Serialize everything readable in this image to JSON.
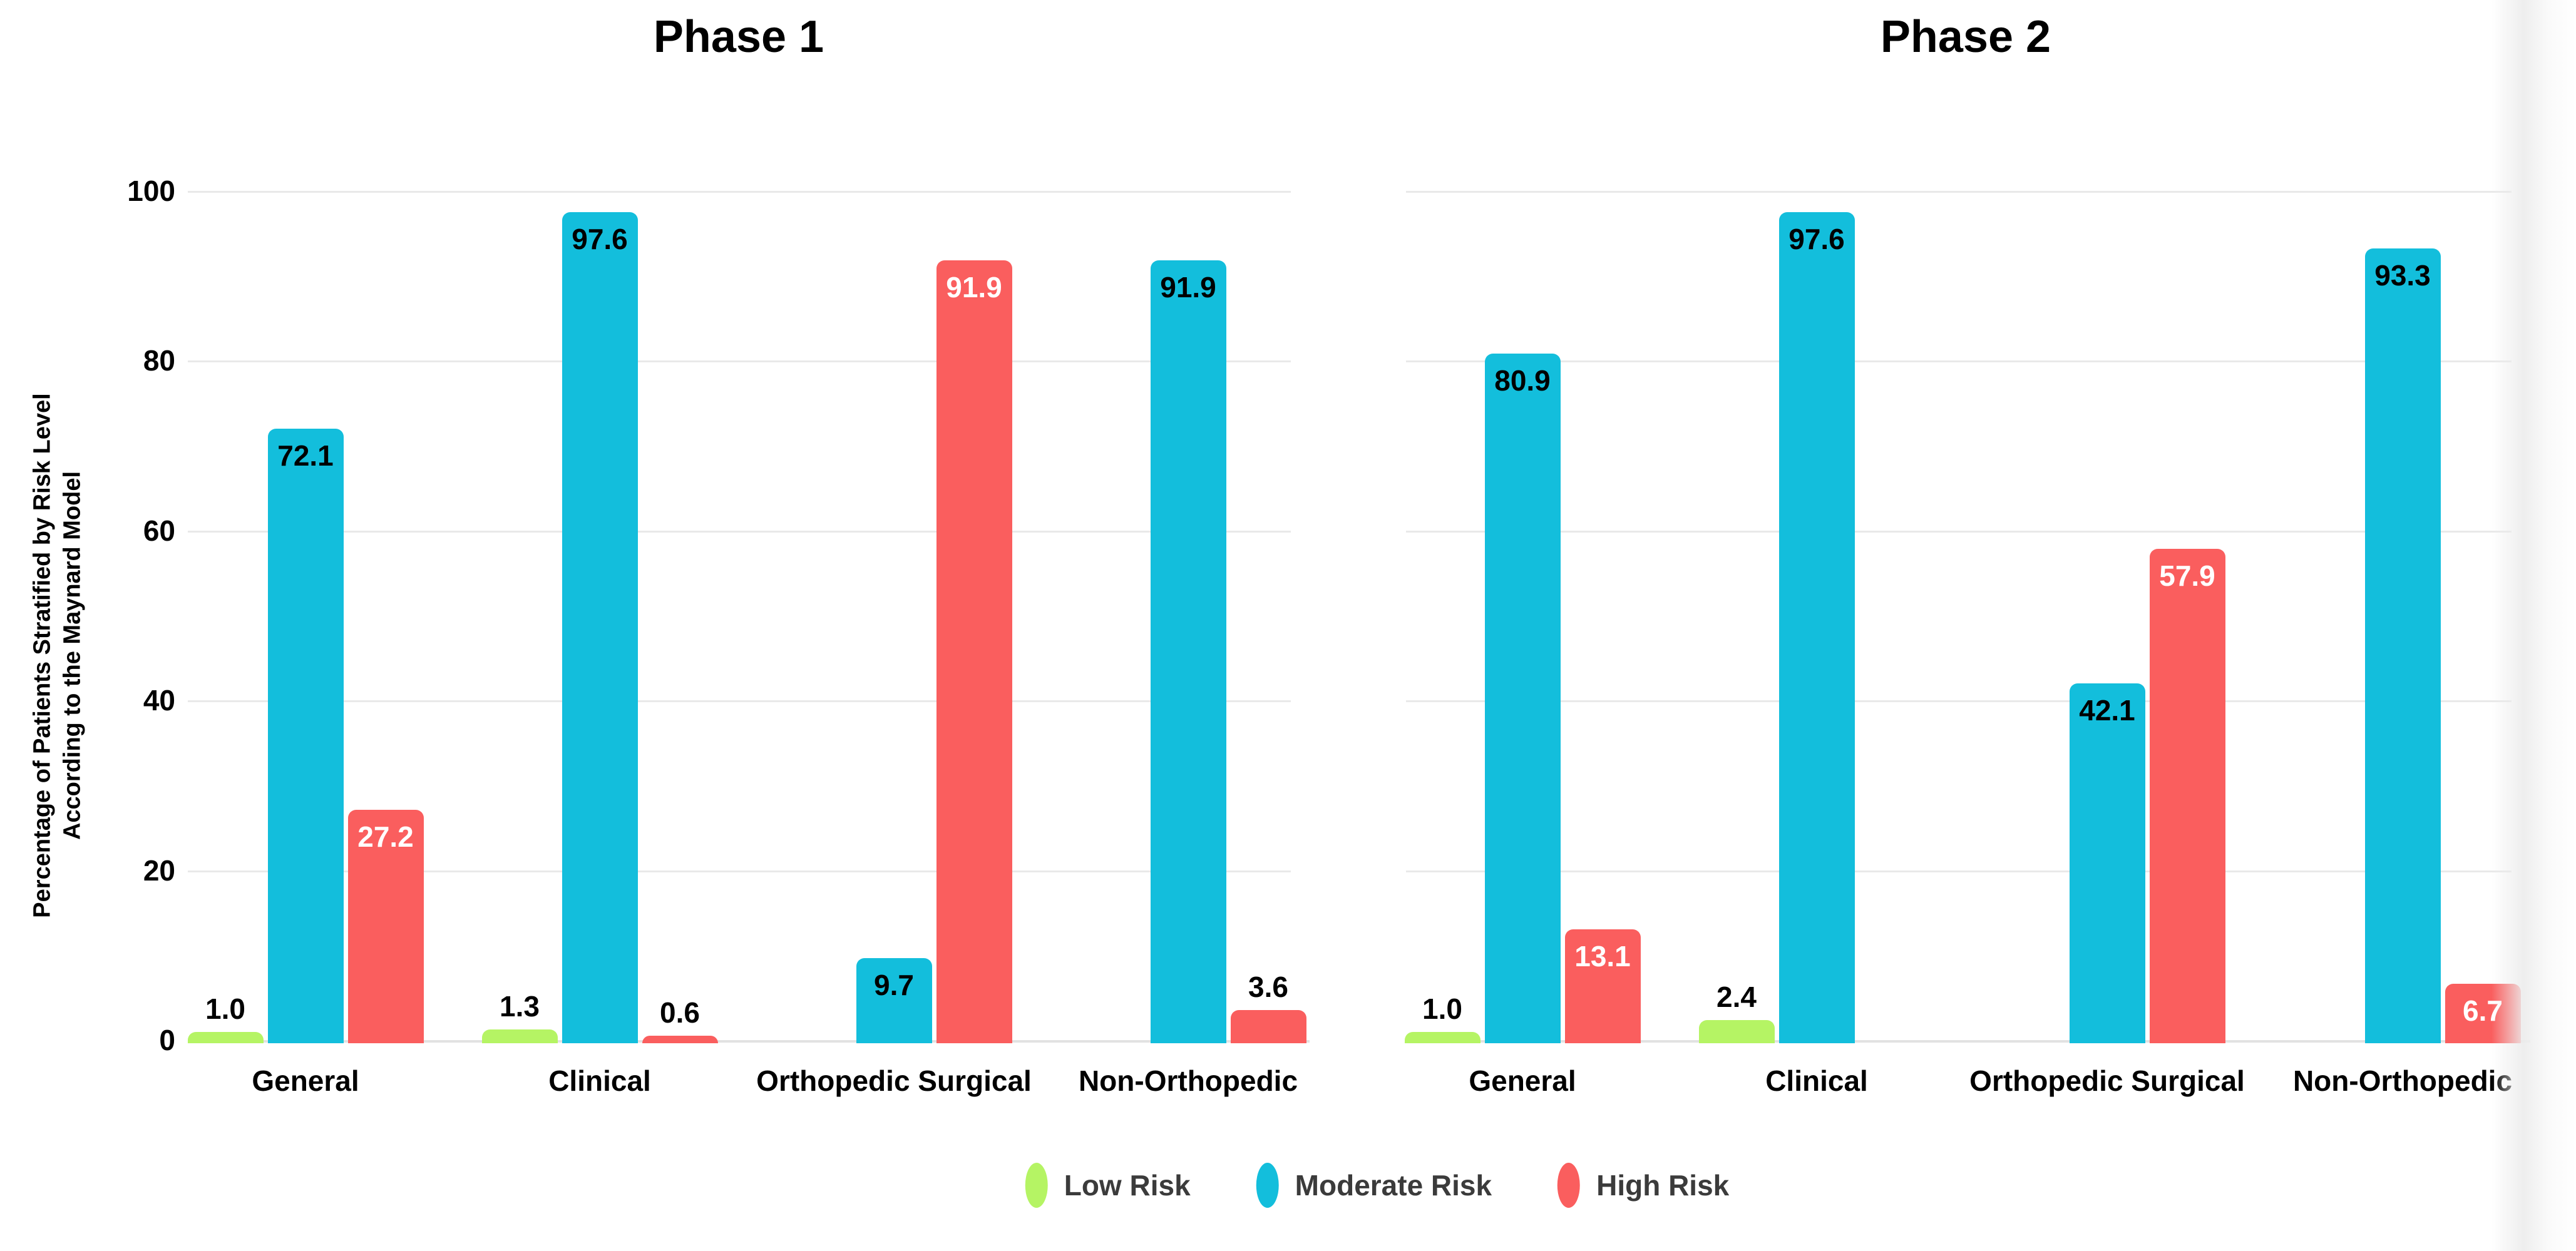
{
  "chart_data": {
    "type": "bar",
    "grid": "horizontal",
    "legend_position": "bottom-center",
    "ylim": [
      0,
      100
    ],
    "yticks": [
      0,
      20,
      40,
      60,
      80,
      100
    ],
    "ylabel_line1": "Percentage of Patients Stratified by Risk Level",
    "ylabel_line2": "According to the Maynard Model",
    "categories": [
      "General",
      "Clinical",
      "Orthopedic Surgical",
      "Non-Orthopedic"
    ],
    "colors": {
      "low_risk": "#b5f464",
      "moderate_risk": "#13bedc",
      "high_risk": "#fa5e5e",
      "gridline": "#e9e9e9",
      "baseline": "#e2e2e2",
      "inside_label_on_high": "#ffffff",
      "inside_label_on_moderate": "#000000",
      "text": "#000000",
      "legend_text": "#3b3b3b"
    },
    "panels": [
      {
        "title": "Phase 1",
        "series": [
          {
            "name": "Low Risk",
            "color": "#b5f464",
            "values": [
              1.0,
              1.3,
              null,
              null
            ]
          },
          {
            "name": "Moderate Risk",
            "color": "#13bedc",
            "values": [
              72.1,
              97.6,
              9.7,
              91.9
            ]
          },
          {
            "name": "High Risk",
            "color": "#fa5e5e",
            "values": [
              27.2,
              0.6,
              91.9,
              3.6
            ]
          }
        ]
      },
      {
        "title": "Phase 2",
        "series": [
          {
            "name": "Low Risk",
            "color": "#b5f464",
            "values": [
              1.0,
              2.4,
              null,
              null
            ]
          },
          {
            "name": "Moderate Risk",
            "color": "#13bedc",
            "values": [
              80.9,
              97.6,
              42.1,
              93.3
            ]
          },
          {
            "name": "High Risk",
            "color": "#fa5e5e",
            "values": [
              13.1,
              null,
              57.9,
              6.7
            ]
          }
        ]
      }
    ],
    "legend": {
      "items": [
        {
          "label": "Low Risk",
          "color": "#b5f464"
        },
        {
          "label": "Moderate Risk",
          "color": "#13bedc"
        },
        {
          "label": "High Risk",
          "color": "#fa5e5e"
        }
      ]
    },
    "value_label_decimals": 1
  }
}
